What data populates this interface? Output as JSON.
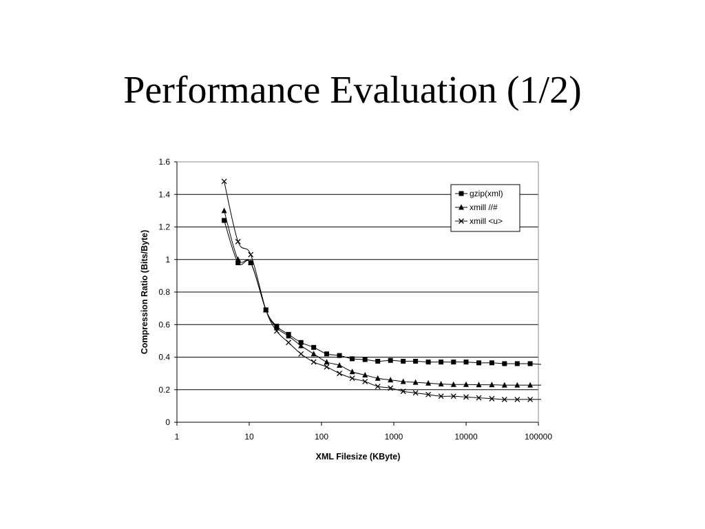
{
  "slide": {
    "title": "Performance Evaluation (1/2)"
  },
  "chart_data": {
    "type": "line",
    "title": "",
    "xlabel": "XML Filesize (KByte)",
    "ylabel": "Compression Ratio (Bits/Byte)",
    "xscale": "log",
    "xlim": [
      1,
      100000
    ],
    "ylim": [
      0,
      1.6
    ],
    "xticks": [
      "1",
      "10",
      "100",
      "1000",
      "10000",
      "100000"
    ],
    "yticks": [
      "0",
      "0.2",
      "0.4",
      "0.6",
      "0.8",
      "1",
      "1.2",
      "1.4",
      "1.6"
    ],
    "grid": "horizontal",
    "legend_position": "top-right",
    "series": [
      {
        "name": "gzip(xml)",
        "marker": "square",
        "x": [
          4.5,
          7,
          10.5,
          17,
          24,
          35,
          52,
          78,
          118,
          177,
          266,
          400,
          600,
          900,
          1350,
          2000,
          3000,
          4500,
          6700,
          10000,
          15000,
          22700,
          34000,
          51000,
          77000
        ],
        "y": [
          1.24,
          0.98,
          0.98,
          0.69,
          0.59,
          0.54,
          0.49,
          0.46,
          0.42,
          0.41,
          0.39,
          0.385,
          0.375,
          0.38,
          0.375,
          0.375,
          0.37,
          0.37,
          0.37,
          0.37,
          0.365,
          0.365,
          0.36,
          0.36,
          0.36
        ]
      },
      {
        "name": "xmill //#",
        "marker": "triangle",
        "x": [
          4.5,
          7,
          10.5,
          17,
          24,
          35,
          52,
          78,
          118,
          177,
          266,
          400,
          600,
          900,
          1350,
          2000,
          3000,
          4500,
          6700,
          10000,
          15000,
          22700,
          34000,
          51000,
          77000
        ],
        "y": [
          1.3,
          1.0,
          0.98,
          0.69,
          0.58,
          0.53,
          0.47,
          0.42,
          0.37,
          0.35,
          0.31,
          0.29,
          0.27,
          0.26,
          0.25,
          0.245,
          0.24,
          0.235,
          0.232,
          0.232,
          0.23,
          0.23,
          0.228,
          0.228,
          0.228
        ]
      },
      {
        "name": "xmill <u>",
        "marker": "x",
        "x": [
          4.5,
          7,
          10.5,
          17,
          24,
          35,
          52,
          78,
          118,
          177,
          266,
          400,
          600,
          900,
          1350,
          2000,
          3000,
          4500,
          6700,
          10000,
          15000,
          22700,
          34000,
          51000,
          77000
        ],
        "y": [
          1.48,
          1.11,
          1.03,
          0.69,
          0.56,
          0.49,
          0.42,
          0.37,
          0.34,
          0.3,
          0.27,
          0.25,
          0.22,
          0.21,
          0.19,
          0.18,
          0.17,
          0.16,
          0.16,
          0.155,
          0.15,
          0.145,
          0.14,
          0.14,
          0.14
        ]
      }
    ]
  }
}
